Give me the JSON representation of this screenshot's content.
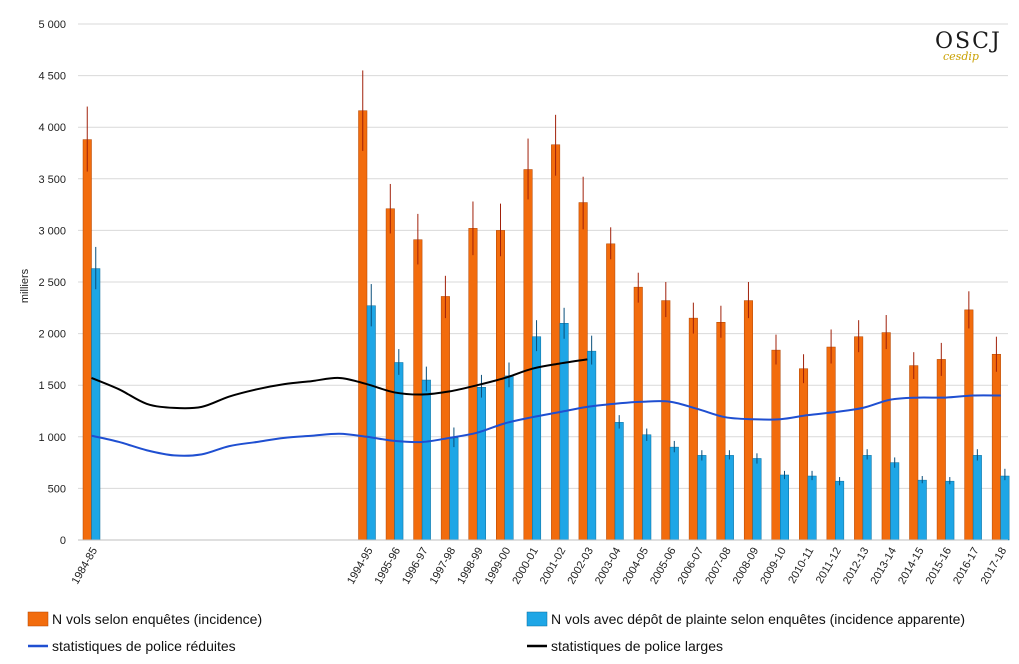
{
  "chart_data": {
    "type": "bar",
    "ylabel": "milliers",
    "ylim": [
      0,
      5000
    ],
    "yticks": [
      0,
      500,
      1000,
      1500,
      2000,
      2500,
      3000,
      3500,
      4000,
      4500,
      5000
    ],
    "ytick_labels": [
      "0",
      "500",
      "1 000",
      "1 500",
      "2 000",
      "2 500",
      "3 000",
      "3 500",
      "4 000",
      "4 500",
      "5 000"
    ],
    "grid": true,
    "legend_position": "bottom",
    "timeline": [
      "1984-85",
      "1985-86",
      "1986-87",
      "1987-88",
      "1988-89",
      "1989-90",
      "1990-91",
      "1991-92",
      "1992-93",
      "1993-94",
      "1994-95",
      "1995-96",
      "1996-97",
      "1997-98",
      "1998-99",
      "1999-00",
      "2000-01",
      "2001-02",
      "2002-03",
      "2003-04",
      "2004-05",
      "2005-06",
      "2006-07",
      "2007-08",
      "2008-09",
      "2009-10",
      "2010-11",
      "2011-12",
      "2012-13",
      "2013-14",
      "2014-15",
      "2015-16",
      "2016-17",
      "2017-18"
    ],
    "categories": [
      "1984-85",
      "1994-95",
      "1995-96",
      "1996-97",
      "1997-98",
      "1998-99",
      "1999-00",
      "2000-01",
      "2001-02",
      "2002-03",
      "2003-04",
      "2004-05",
      "2005-06",
      "2006-07",
      "2007-08",
      "2008-09",
      "2009-10",
      "2010-11",
      "2011-12",
      "2012-13",
      "2013-14",
      "2014-15",
      "2015-16",
      "2016-17",
      "2017-18"
    ],
    "series": [
      {
        "name": "N vols  selon enquêtes (incidence)",
        "kind": "bar",
        "color": "#f26c0d",
        "values": [
          3880,
          4160,
          3210,
          2910,
          2360,
          3020,
          3000,
          3590,
          3830,
          3270,
          2870,
          2450,
          2320,
          2150,
          2110,
          2320,
          1840,
          1660,
          1870,
          1970,
          2010,
          1690,
          1750,
          2230,
          1800
        ],
        "error_low": [
          3570,
          3770,
          2970,
          2670,
          2150,
          2760,
          2750,
          3300,
          3530,
          3010,
          2720,
          2300,
          2160,
          2000,
          1960,
          2150,
          1700,
          1520,
          1710,
          1820,
          1850,
          1560,
          1590,
          2050,
          1630
        ],
        "error_high": [
          4200,
          4550,
          3450,
          3160,
          2560,
          3280,
          3260,
          3890,
          4120,
          3520,
          3030,
          2590,
          2500,
          2300,
          2270,
          2500,
          1990,
          1800,
          2040,
          2130,
          2180,
          1820,
          1910,
          2410,
          1970
        ]
      },
      {
        "name": "N vols  avec dépôt de plainte selon enquêtes (incidence apparente)",
        "kind": "bar",
        "color": "#1ea6e6",
        "values": [
          2630,
          2270,
          1720,
          1550,
          990,
          1480,
          1590,
          1970,
          2100,
          1830,
          1140,
          1020,
          900,
          820,
          820,
          790,
          630,
          620,
          570,
          820,
          750,
          580,
          570,
          820,
          620
        ],
        "error_low": [
          2430,
          2070,
          1600,
          1440,
          900,
          1380,
          1480,
          1830,
          1950,
          1700,
          1080,
          960,
          850,
          770,
          780,
          740,
          590,
          580,
          530,
          780,
          700,
          550,
          540,
          770,
          580
        ],
        "error_high": [
          2840,
          2480,
          1850,
          1680,
          1090,
          1600,
          1720,
          2130,
          2250,
          1980,
          1210,
          1080,
          960,
          870,
          870,
          840,
          670,
          670,
          610,
          880,
          800,
          620,
          610,
          880,
          690
        ]
      },
      {
        "name": "statistiques de police réduites",
        "kind": "line",
        "color": "#1f4fd1",
        "x": [
          "1984-85",
          "1985-86",
          "1986-87",
          "1987-88",
          "1988-89",
          "1989-90",
          "1990-91",
          "1991-92",
          "1992-93",
          "1993-94",
          "1994-95",
          "1995-96",
          "1996-97",
          "1997-98",
          "1998-99",
          "1999-00",
          "2000-01",
          "2001-02",
          "2002-03",
          "2003-04",
          "2004-05",
          "2005-06",
          "2006-07",
          "2007-08",
          "2008-09",
          "2009-10",
          "2010-11",
          "2011-12",
          "2012-13",
          "2013-14",
          "2014-15",
          "2015-16",
          "2016-17",
          "2017-18"
        ],
        "values": [
          1010,
          950,
          870,
          820,
          830,
          910,
          950,
          990,
          1010,
          1030,
          1000,
          960,
          950,
          990,
          1040,
          1130,
          1190,
          1240,
          1290,
          1320,
          1340,
          1340,
          1270,
          1190,
          1170,
          1170,
          1210,
          1240,
          1280,
          1360,
          1380,
          1380,
          1400,
          1400
        ]
      },
      {
        "name": "statistiques de police larges",
        "kind": "line",
        "color": "#000000",
        "x": [
          "1984-85",
          "1985-86",
          "1986-87",
          "1987-88",
          "1988-89",
          "1989-90",
          "1990-91",
          "1991-92",
          "1992-93",
          "1993-94",
          "1994-95",
          "1995-96",
          "1996-97",
          "1997-98",
          "1998-99",
          "1999-00",
          "2000-01",
          "2001-02",
          "2002-03"
        ],
        "values": [
          1570,
          1460,
          1320,
          1280,
          1290,
          1390,
          1460,
          1510,
          1540,
          1570,
          1510,
          1430,
          1410,
          1440,
          1500,
          1570,
          1660,
          1710,
          1750
        ]
      }
    ]
  },
  "logo": {
    "main": "OSCJ",
    "sub": "cesdip"
  }
}
